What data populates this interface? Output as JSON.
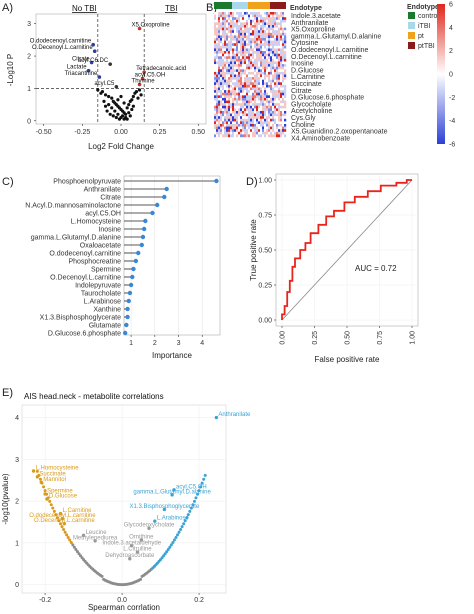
{
  "panel_labels": [
    "A)",
    "B)",
    "C)",
    "D)",
    "E)"
  ],
  "chart_data": [
    {
      "id": "A",
      "type": "scatter",
      "xlabel": "Log2 Fold Change",
      "ylabel": "-Log10 P",
      "xlim": [
        -0.55,
        0.55
      ],
      "ylim": [
        -0.1,
        3.3
      ],
      "xticks": [
        "-0.50",
        "-0.25",
        "0.00",
        "0.25",
        "0.50"
      ],
      "yticks": [
        "0",
        "1",
        "2",
        "3"
      ],
      "thresholds": {
        "x": [
          -0.15,
          0.15
        ],
        "y": 1
      },
      "top_labels": [
        "No TBI",
        "TBI"
      ],
      "labeled_points": [
        {
          "label": "X5.Oxoproline",
          "x": 0.12,
          "y": 2.85,
          "color": "#c0392b"
        },
        {
          "label": "O.dodecenoyl.carnitine",
          "x": -0.18,
          "y": 2.35,
          "color": "#2c3e9f"
        },
        {
          "label": "O.Decenoyl.L.carnitine",
          "x": -0.17,
          "y": 2.15,
          "color": "#2c3e9f"
        },
        {
          "label": "Citrate",
          "x": -0.19,
          "y": 1.8,
          "color": "#2c3e9f"
        },
        {
          "label": "acyl.C6.DC",
          "x": -0.07,
          "y": 1.75,
          "color": "#333333"
        },
        {
          "label": "Lactate",
          "x": -0.21,
          "y": 1.55,
          "color": "#2c3e9f"
        },
        {
          "label": "Tetradecanoic.acid",
          "x": 0.15,
          "y": 1.5,
          "color": "#c0392b"
        },
        {
          "label": "Triacanthine",
          "x": -0.14,
          "y": 1.35,
          "color": "#2c3e9f"
        },
        {
          "label": "acyl.C5.OH",
          "x": 0.14,
          "y": 1.3,
          "color": "#c0392b"
        },
        {
          "label": "Thymine",
          "x": 0.12,
          "y": 1.12,
          "color": "#c0392b"
        },
        {
          "label": "acyl.C5",
          "x": -0.03,
          "y": 1.05,
          "color": "#333333"
        }
      ],
      "points": [
        [
          -0.12,
          0.9
        ],
        [
          -0.1,
          0.8
        ],
        [
          -0.08,
          0.75
        ],
        [
          -0.06,
          0.7
        ],
        [
          -0.05,
          0.6
        ],
        [
          -0.04,
          0.55
        ],
        [
          -0.03,
          0.5
        ],
        [
          -0.02,
          0.45
        ],
        [
          -0.01,
          0.4
        ],
        [
          0.0,
          0.35
        ],
        [
          0.01,
          0.3
        ],
        [
          0.02,
          0.25
        ],
        [
          0.0,
          0.1
        ],
        [
          -0.01,
          0.05
        ],
        [
          0.01,
          0.15
        ],
        [
          0.02,
          0.05
        ],
        [
          0.03,
          0.2
        ],
        [
          0.04,
          0.4
        ],
        [
          0.05,
          0.5
        ],
        [
          0.06,
          0.6
        ],
        [
          0.07,
          0.65
        ],
        [
          0.08,
          0.75
        ],
        [
          0.09,
          0.85
        ],
        [
          0.1,
          0.9
        ],
        [
          -0.09,
          0.3
        ],
        [
          -0.07,
          0.2
        ],
        [
          -0.05,
          0.15
        ],
        [
          -0.03,
          0.1
        ],
        [
          -0.02,
          0.2
        ],
        [
          0.03,
          0.1
        ],
        [
          0.05,
          0.25
        ],
        [
          0.06,
          0.15
        ],
        [
          -0.11,
          0.6
        ],
        [
          -0.13,
          0.85
        ],
        [
          0.11,
          0.7
        ],
        [
          0.12,
          0.95
        ],
        [
          -0.04,
          0.3
        ],
        [
          -0.06,
          0.4
        ],
        [
          0.04,
          0.05
        ],
        [
          0.07,
          0.35
        ],
        [
          -0.08,
          0.5
        ],
        [
          0.08,
          0.45
        ],
        [
          -0.15,
          0.95
        ],
        [
          0.13,
          0.8
        ],
        [
          -0.02,
          0.65
        ],
        [
          0.02,
          0.55
        ],
        [
          0.0,
          0.75
        ],
        [
          -0.1,
          0.45
        ]
      ]
    },
    {
      "id": "B",
      "type": "heatmap",
      "rows": [
        "Indole.3.acetate",
        "Anthranilate",
        "X5.Oxoproline",
        "gamma.L.Glutamyl.D.alanine",
        "Cytosine",
        "O.dodecenoyl.L.carnitine",
        "O.Decenoyl.L.carnitine",
        "Inosine",
        "D.Glucose",
        "L.Carnitine",
        "Succinate",
        "Citrate",
        "D.Glucose.6.phosphate",
        "Glycocholate",
        "Acetylcholine",
        "Cys.Gly",
        "Choline",
        "X5.Guanidino.2.oxopentanoate",
        "X4.Aminobenzoate"
      ],
      "annotation_title": "Endotype",
      "legend_title": "Endotype",
      "legend": [
        {
          "label": "control",
          "color": "#1a7a2e"
        },
        {
          "label": "iTBI",
          "color": "#a9d8ea"
        },
        {
          "label": "pt",
          "color": "#f0a21b"
        },
        {
          "label": "ptTBI",
          "color": "#8b1a1a"
        }
      ],
      "colorbar_ticks": [
        "6",
        "4",
        "2",
        "0",
        "-2",
        "-4",
        "-6"
      ],
      "colorbar_range": [
        -6,
        6
      ]
    },
    {
      "id": "C",
      "type": "scatter",
      "subtype": "lollipop",
      "xlabel": "Importance",
      "xticks": [
        "1",
        "2",
        "3",
        "4"
      ],
      "xlim": [
        0.7,
        4.75
      ],
      "categories": [
        "Phosphoenolpyruvate",
        "Anthranilate",
        "Citrate",
        "N.Acyl.D.mannosaminolactone",
        "acyl.C5.OH",
        "L.Homocysteine",
        "Inosine",
        "gamma.L.Glutamyl.D.alanine",
        "Oxaloacetate",
        "O.dodecenoyl.carnitine",
        "Phosphocreatine",
        "Spermine",
        "O.Decenoyl.L.carnitine",
        "Indolepyruvate",
        "Taurocholate",
        "L.Arabinose",
        "Xanthine",
        "X1.3.Bisphosphoglycerate",
        "Glutamate",
        "D.Glucose.6.phosphate"
      ],
      "values": [
        4.6,
        2.5,
        2.4,
        2.1,
        1.9,
        1.6,
        1.55,
        1.5,
        1.45,
        1.3,
        1.2,
        1.1,
        1.05,
        1.0,
        0.95,
        0.9,
        0.85,
        0.85,
        0.8,
        0.75
      ],
      "color": "#3a86d9"
    },
    {
      "id": "D",
      "type": "line",
      "xlabel": "False positive rate",
      "ylabel": "True positive rate",
      "xticks": [
        "0.00",
        "0.25",
        "0.50",
        "0.75",
        "1.00"
      ],
      "yticks": [
        "0.00",
        "0.25",
        "0.50",
        "0.75",
        "1.00"
      ],
      "xlim": [
        0,
        1
      ],
      "ylim": [
        0,
        1
      ],
      "annotation": "AUC = 0.72",
      "roc": [
        [
          0,
          0
        ],
        [
          0,
          0.04
        ],
        [
          0.02,
          0.04
        ],
        [
          0.02,
          0.1
        ],
        [
          0.04,
          0.1
        ],
        [
          0.04,
          0.2
        ],
        [
          0.06,
          0.2
        ],
        [
          0.06,
          0.28
        ],
        [
          0.08,
          0.28
        ],
        [
          0.08,
          0.38
        ],
        [
          0.1,
          0.38
        ],
        [
          0.1,
          0.44
        ],
        [
          0.14,
          0.44
        ],
        [
          0.14,
          0.5
        ],
        [
          0.18,
          0.5
        ],
        [
          0.18,
          0.55
        ],
        [
          0.22,
          0.55
        ],
        [
          0.22,
          0.62
        ],
        [
          0.28,
          0.62
        ],
        [
          0.28,
          0.68
        ],
        [
          0.34,
          0.68
        ],
        [
          0.34,
          0.74
        ],
        [
          0.4,
          0.74
        ],
        [
          0.4,
          0.78
        ],
        [
          0.48,
          0.78
        ],
        [
          0.48,
          0.84
        ],
        [
          0.56,
          0.84
        ],
        [
          0.56,
          0.88
        ],
        [
          0.66,
          0.88
        ],
        [
          0.66,
          0.92
        ],
        [
          0.76,
          0.92
        ],
        [
          0.76,
          0.96
        ],
        [
          0.88,
          0.96
        ],
        [
          0.88,
          0.98
        ],
        [
          0.96,
          0.98
        ],
        [
          0.96,
          1.0
        ],
        [
          1.0,
          1.0
        ]
      ],
      "series_color": "#e8241c"
    },
    {
      "id": "E",
      "type": "scatter",
      "title": "AIS head.neck - metabolite correlations",
      "xlabel": "Spearman corrlation",
      "ylabel": "-log10(pvalue)",
      "xticks": [
        "-0.2",
        "0.0",
        "0.2"
      ],
      "yticks": [
        "0",
        "1",
        "2",
        "3",
        "4"
      ],
      "xlim": [
        -0.26,
        0.27
      ],
      "ylim": [
        -0.2,
        4.3
      ],
      "labeled_points": [
        {
          "label": "Anthranilate",
          "x": 0.245,
          "y": 4.0,
          "color": "#3ba3d4",
          "anchor": "start"
        },
        {
          "label": "L.Homocysteine",
          "x": -0.23,
          "y": 2.72,
          "color": "#d99a1a",
          "anchor": "start"
        },
        {
          "label": "Succinate",
          "x": -0.22,
          "y": 2.58,
          "color": "#d99a1a",
          "anchor": "start"
        },
        {
          "label": "Mannitol",
          "x": -0.21,
          "y": 2.45,
          "color": "#d99a1a",
          "anchor": "start"
        },
        {
          "label": "Spermine",
          "x": -0.2,
          "y": 2.17,
          "color": "#d99a1a",
          "anchor": "start"
        },
        {
          "label": "D.Glucose",
          "x": -0.195,
          "y": 2.05,
          "color": "#d99a1a",
          "anchor": "start"
        },
        {
          "label": "L.Carnitine",
          "x": -0.16,
          "y": 1.7,
          "color": "#d99a1a",
          "anchor": "start"
        },
        {
          "label": "O.dodecenoyl.L.carnitine",
          "x": -0.155,
          "y": 1.58,
          "color": "#d99a1a",
          "anchor": "middle"
        },
        {
          "label": "O.Decenoyl.L.carnitine",
          "x": -0.15,
          "y": 1.46,
          "color": "#d99a1a",
          "anchor": "middle"
        },
        {
          "label": "acyl.C5.OH",
          "x": 0.135,
          "y": 2.27,
          "color": "#3ba3d4",
          "anchor": "start"
        },
        {
          "label": "gamma.L.Glutamyl.D.alanine",
          "x": 0.13,
          "y": 2.15,
          "color": "#3ba3d4",
          "anchor": "middle"
        },
        {
          "label": "X1.3.Bisphosphoglycerate",
          "x": 0.11,
          "y": 1.8,
          "color": "#3ba3d4",
          "anchor": "middle"
        },
        {
          "label": "L.Arabinose",
          "x": 0.085,
          "y": 1.52,
          "color": "#3ba3d4",
          "anchor": "start"
        },
        {
          "label": "Glycodeoxycholate",
          "x": 0.07,
          "y": 1.35,
          "color": "#999999",
          "anchor": "middle"
        },
        {
          "label": "Leucine",
          "x": -0.1,
          "y": 1.18,
          "color": "#999999",
          "anchor": "start"
        },
        {
          "label": "Ornithine",
          "x": 0.05,
          "y": 1.07,
          "color": "#999999",
          "anchor": "middle"
        },
        {
          "label": "Methylenediurea",
          "x": -0.07,
          "y": 1.05,
          "color": "#999999",
          "anchor": "middle"
        },
        {
          "label": "Indole.3.acetaldehyde",
          "x": 0.025,
          "y": 0.93,
          "color": "#999999",
          "anchor": "middle"
        },
        {
          "label": "L.Citrulline",
          "x": 0.04,
          "y": 0.78,
          "color": "#999999",
          "anchor": "middle"
        },
        {
          "label": "Dehydroascorbate",
          "x": 0.02,
          "y": 0.62,
          "color": "#999999",
          "anchor": "middle"
        }
      ]
    }
  ]
}
